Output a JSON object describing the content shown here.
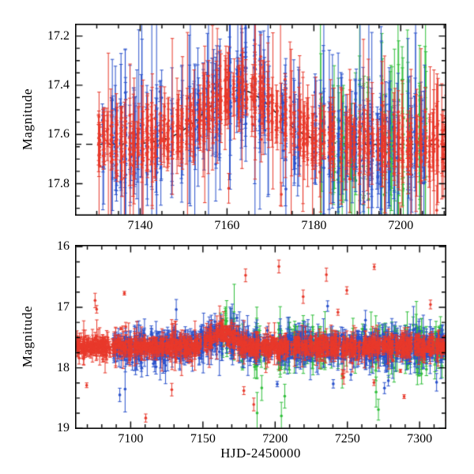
{
  "figure": {
    "background": "#ffffff",
    "frame_color": "#000000",
    "description": "Two-panel astronomical light curve (magnitude vs. time) with three observatory datasets shown as red, blue and green points with error bars, and a dashed black model curve showing a brightening bump peaking near HJD-2450000 = 7163."
  },
  "chart_data": [
    {
      "id": "top",
      "type": "scatter",
      "panel": "top",
      "title": "",
      "xlabel": "",
      "ylabel": "Magnitude",
      "grid": false,
      "legend": "none",
      "x_axis": {
        "lim": [
          7125.0,
          7210.5
        ],
        "major_ticks": [
          7140,
          7160,
          7180,
          7200
        ],
        "tick_labels": [
          "7140",
          "7160",
          "7180",
          "7200"
        ],
        "minor_step": 5
      },
      "y_axis": {
        "lim": [
          17.15,
          17.93
        ],
        "major_ticks": [
          17.2,
          17.4,
          17.6,
          17.8
        ],
        "tick_labels": [
          "17.2",
          "17.4",
          "17.6",
          "17.8"
        ],
        "minor_step": 0.05,
        "inverted": true
      },
      "model_curve": {
        "style": "dashed",
        "color": "#000000",
        "baseline_mag": 17.64,
        "peak_mag": 17.42,
        "peak_time": 7163,
        "sigma_days": 8.0
      },
      "series": [
        {
          "name": "site-green",
          "color": "#2fbf3a",
          "marker": "circle",
          "error_bars": true,
          "seed": 301,
          "night_start": 7181,
          "night_end": 7209,
          "night_prob": 0.65,
          "pts_min": 4,
          "pts_max": 10,
          "scatter_mag": 0.1,
          "err_min": 0.05,
          "err_max": 0.25,
          "big_err_frac": 0.2,
          "big_err_extra": 0.4,
          "outlier_frac": 0.0,
          "outlier_bias": 0.5,
          "outlier_range": 0.0
        },
        {
          "name": "site-blue",
          "color": "#2a52cc",
          "marker": "circle",
          "error_bars": true,
          "seed": 201,
          "night_start": 7131,
          "night_end": 7205,
          "night_prob": 0.78,
          "pts_min": 4,
          "pts_max": 12,
          "scatter_mag": 0.07,
          "err_min": 0.04,
          "err_max": 0.2,
          "big_err_frac": 0.16,
          "big_err_extra": 0.35,
          "outlier_frac": 0.01,
          "outlier_bias": 0.5,
          "outlier_range": 0.6
        },
        {
          "name": "site-red",
          "color": "#e8392b",
          "marker": "circle",
          "error_bars": true,
          "seed": 101,
          "night_start": 7130,
          "night_end": 7210,
          "night_prob": 0.97,
          "pts_min": 5,
          "pts_max": 15,
          "scatter_mag": 0.05,
          "err_min": 0.02,
          "err_max": 0.11,
          "big_err_frac": 0.12,
          "big_err_extra": 0.3,
          "outlier_frac": 0.012,
          "outlier_bias": 0.5,
          "outlier_range": 0.7
        }
      ]
    },
    {
      "id": "bottom",
      "type": "scatter",
      "panel": "bottom",
      "title": "",
      "xlabel": "HJD-2450000",
      "ylabel": "Magnitude",
      "grid": false,
      "legend": "none",
      "x_axis": {
        "lim": [
          7061.5,
          7318.5
        ],
        "major_ticks": [
          7100,
          7150,
          7200,
          7250,
          7300
        ],
        "tick_labels": [
          "7100",
          "7150",
          "7200",
          "7250",
          "7300"
        ],
        "minor_step": 10
      },
      "y_axis": {
        "lim": [
          15.97,
          19.01
        ],
        "major_ticks": [
          16,
          17,
          18,
          19
        ],
        "tick_labels": [
          "16",
          "17",
          "18",
          "19"
        ],
        "minor_step": 0.25,
        "inverted": true
      },
      "model_curve": {
        "style": "dashed",
        "color": "#000000",
        "baseline_mag": 17.65,
        "peak_mag": 17.43,
        "peak_time": 7163,
        "sigma_days": 8.0
      },
      "series": [
        {
          "name": "site-green",
          "color": "#2fbf3a",
          "marker": "circle",
          "error_bars": true,
          "seed": 302,
          "night_start": 7160,
          "night_end": 7317,
          "night_prob": 0.5,
          "pts_min": 2,
          "pts_max": 7,
          "scatter_mag": 0.15,
          "err_min": 0.06,
          "err_max": 0.25,
          "big_err_frac": 0.15,
          "big_err_extra": 0.35,
          "outlier_frac": 0.05,
          "outlier_bias": 0.25,
          "outlier_range": 1.6
        },
        {
          "name": "site-blue",
          "color": "#2a52cc",
          "marker": "circle",
          "error_bars": true,
          "seed": 202,
          "night_start": 7088,
          "night_end": 7318,
          "night_prob": 0.8,
          "pts_min": 3,
          "pts_max": 10,
          "scatter_mag": 0.1,
          "err_min": 0.04,
          "err_max": 0.18,
          "big_err_frac": 0.12,
          "big_err_extra": 0.3,
          "outlier_frac": 0.02,
          "outlier_bias": 0.4,
          "outlier_range": 1.4
        },
        {
          "name": "site-red",
          "color": "#e8392b",
          "marker": "circle",
          "error_bars": true,
          "seed": 102,
          "night_start": 7062,
          "night_end": 7318,
          "night_prob": 0.9,
          "pts_min": 3,
          "pts_max": 9,
          "scatter_mag": 0.07,
          "err_min": 0.02,
          "err_max": 0.12,
          "big_err_frac": 0.08,
          "big_err_extra": 0.3,
          "outlier_frac": 0.025,
          "outlier_bias": 0.5,
          "outlier_range": 2.6
        }
      ]
    }
  ]
}
